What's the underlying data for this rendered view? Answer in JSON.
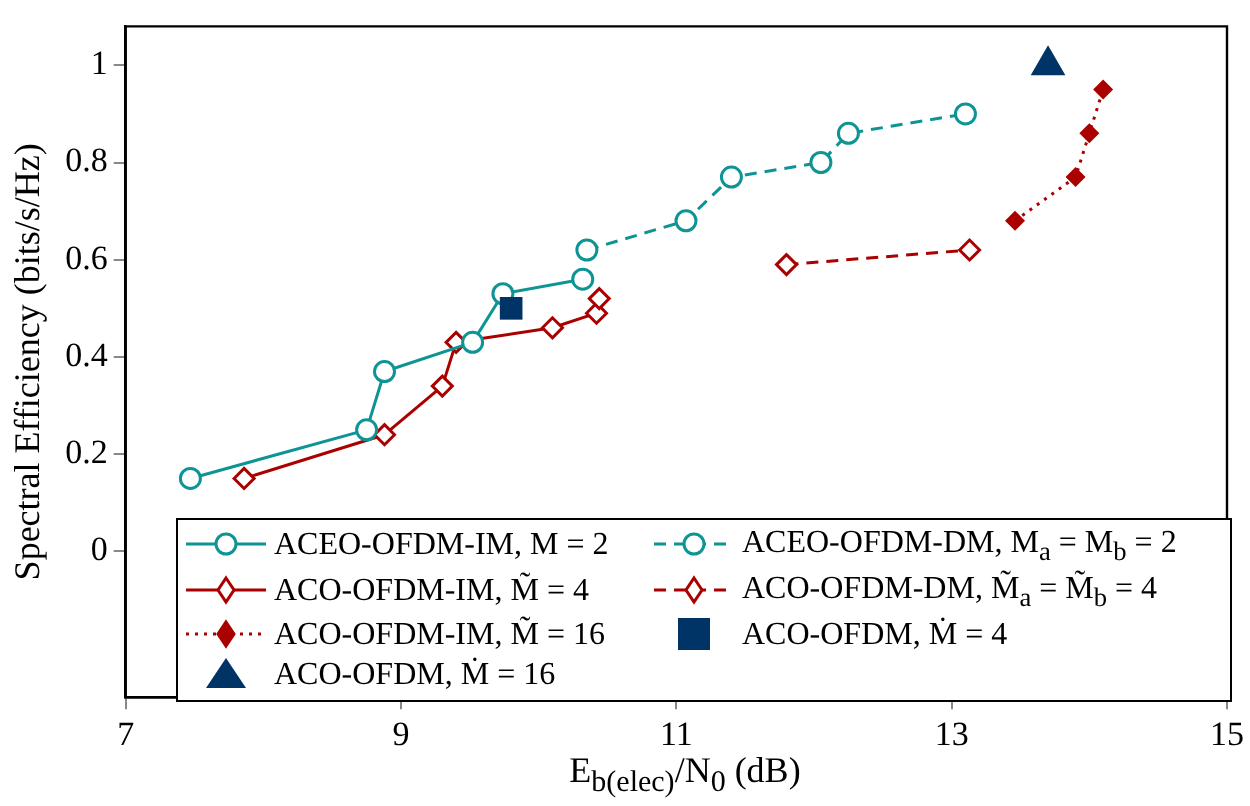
{
  "chart_data": {
    "type": "line",
    "xlabel": "E$_{b(elec)}$/N$_{0}$ (dB)",
    "ylabel": "Spectral Efficiency (bits/s/Hz)",
    "xlim": [
      7,
      15
    ],
    "xticks": [
      7,
      9,
      11,
      13,
      15
    ],
    "ylim": [
      -0.3,
      1.08
    ],
    "yticks": [
      0,
      0.2,
      0.4,
      0.6,
      0.8,
      1
    ],
    "grid": false,
    "legend": "bottom",
    "series": [
      {
        "name": "ACEO-OFDM-IM, M = 2",
        "color": "#0e9494",
        "marker": "circle",
        "line_style": "solid",
        "x": [
          7.47,
          8.75,
          8.88,
          9.52,
          9.74,
          10.32
        ],
        "values": [
          0.15,
          0.25,
          0.37,
          0.43,
          0.53,
          0.56
        ]
      },
      {
        "name": "ACEO-OFDM-DM, M$_{a}$ = M$_{b}$ = 2",
        "color": "#0e9494",
        "marker": "circle",
        "line_style": "dashed",
        "x": [
          10.35,
          11.07,
          11.4,
          12.05,
          12.25,
          13.1
        ],
        "values": [
          0.62,
          0.68,
          0.77,
          0.8,
          0.86,
          0.9
        ]
      },
      {
        "name": "ACO-OFDM-IM, M̃ = 4",
        "color": "#aa0000",
        "marker": "diamond",
        "line_style": "solid",
        "x": [
          7.86,
          8.88,
          9.3,
          9.4,
          10.1,
          10.42,
          10.44
        ],
        "values": [
          0.15,
          0.24,
          0.34,
          0.43,
          0.46,
          0.49,
          0.52
        ]
      },
      {
        "name": "ACO-OFDM-DM, M̃$_{a}$ = M̃$_{b}$ = 4",
        "color": "#aa0000",
        "marker": "diamond",
        "line_style": "dashed",
        "x": [
          11.8,
          13.13
        ],
        "values": [
          0.59,
          0.62
        ]
      },
      {
        "name": "ACO-OFDM-IM, M̃ = 16",
        "color": "#aa0000",
        "marker": "diamond",
        "line_style": "dotted",
        "x": [
          13.46,
          13.9,
          14.0,
          14.1
        ],
        "values": [
          0.68,
          0.77,
          0.86,
          0.95
        ]
      },
      {
        "name": "ACO-OFDM, Ṁ = 4",
        "type": "scatter",
        "color": "#003366",
        "marker": "square",
        "x": [
          9.8
        ],
        "values": [
          0.5
        ]
      },
      {
        "name": "ACO-OFDM, Ṁ = 16",
        "type": "scatter",
        "color": "#003366",
        "marker": "triangle",
        "x": [
          13.7
        ],
        "values": [
          1.0
        ]
      }
    ]
  }
}
